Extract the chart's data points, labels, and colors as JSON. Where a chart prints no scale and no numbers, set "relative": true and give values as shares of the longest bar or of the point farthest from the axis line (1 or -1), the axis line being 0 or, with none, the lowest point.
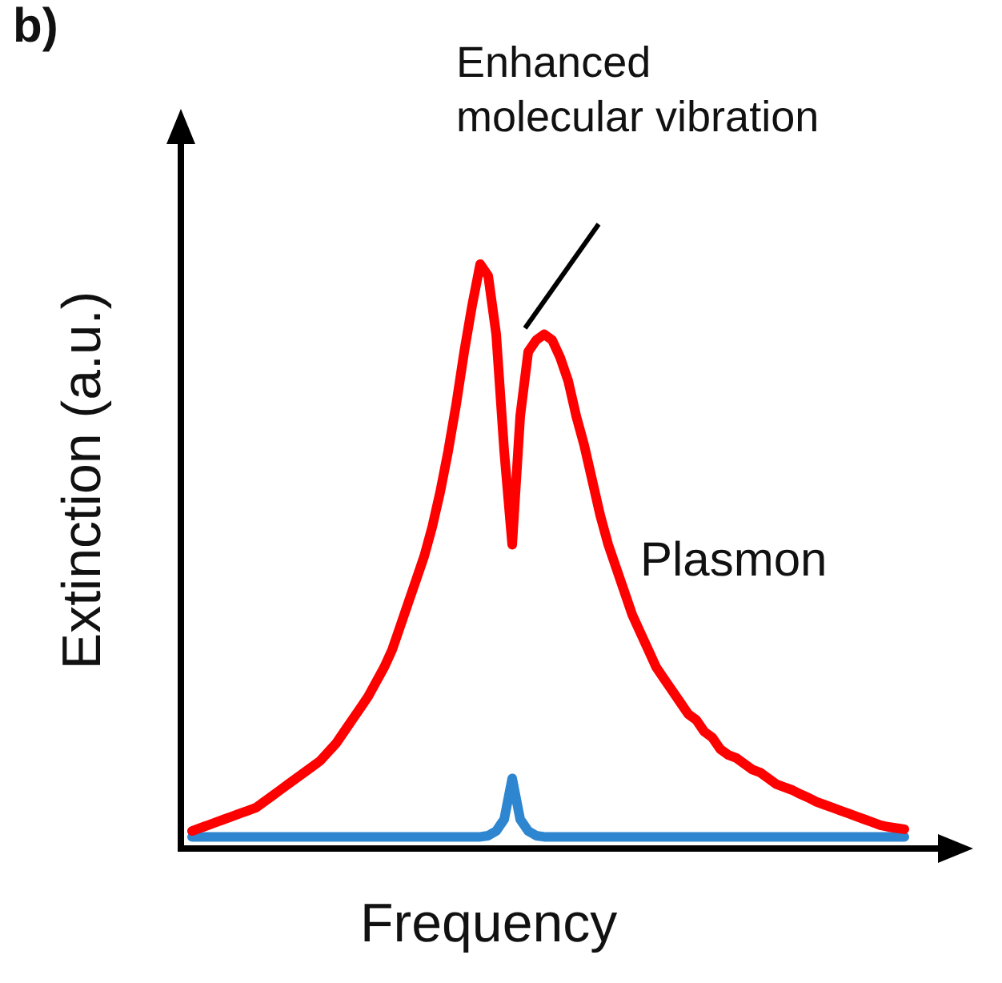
{
  "chart_data": {
    "type": "line",
    "relative": true,
    "xlabel": "Frequency",
    "ylabel": "Extinction (a.u.)",
    "legend": false,
    "grid": false,
    "marker": "none",
    "annotations": [
      "b)",
      "Enhanced\nmolecular vibration"
    ],
    "categories": [
      null,
      null,
      null,
      null,
      null,
      null,
      null,
      null,
      null,
      null,
      null,
      null,
      null,
      null,
      null,
      null,
      null,
      null,
      null,
      null,
      null,
      null,
      null,
      null,
      null,
      null,
      null,
      null,
      null,
      null,
      null,
      null,
      null,
      null,
      null,
      null,
      null,
      null,
      null,
      null,
      null,
      null,
      null,
      null,
      null,
      null,
      null,
      null,
      null,
      null,
      null,
      null,
      null,
      null,
      null,
      null,
      null,
      null,
      null,
      null,
      null,
      null,
      null,
      null,
      null,
      null,
      null,
      null,
      null,
      null,
      null,
      null,
      null,
      null,
      null,
      null,
      null,
      null,
      null,
      null,
      null,
      null,
      null,
      null,
      null,
      null,
      null,
      null,
      null,
      null
    ],
    "series": [
      {
        "name": "Plasmon",
        "color": "#ff0000",
        "values": [
          0.03,
          0.035,
          0.04,
          0.045,
          0.05,
          0.055,
          0.06,
          0.065,
          0.07,
          0.08,
          0.09,
          0.1,
          0.11,
          0.12,
          0.13,
          0.14,
          0.15,
          0.165,
          0.18,
          0.2,
          0.22,
          0.24,
          0.26,
          0.285,
          0.31,
          0.34,
          0.38,
          0.42,
          0.46,
          0.5,
          0.55,
          0.61,
          0.68,
          0.76,
          0.85,
          0.93,
          1,
          0.98,
          0.88,
          0.68,
          0.52,
          0.74,
          0.85,
          0.87,
          0.88,
          0.87,
          0.84,
          0.8,
          0.74,
          0.69,
          0.63,
          0.57,
          0.52,
          0.48,
          0.44,
          0.4,
          0.37,
          0.34,
          0.31,
          0.29,
          0.27,
          0.25,
          0.23,
          0.22,
          0.2,
          0.19,
          0.17,
          0.16,
          0.155,
          0.145,
          0.135,
          0.13,
          0.12,
          0.11,
          0.105,
          0.1,
          0.093,
          0.087,
          0.08,
          0.075,
          0.07,
          0.065,
          0.06,
          0.055,
          0.05,
          0.045,
          0.04,
          0.037,
          0.035,
          0.033
        ]
      },
      {
        "color": "#2f86d0",
        "values": [
          0.02,
          0.02,
          0.02,
          0.02,
          0.02,
          0.02,
          0.02,
          0.02,
          0.02,
          0.02,
          0.02,
          0.02,
          0.02,
          0.02,
          0.02,
          0.02,
          0.02,
          0.02,
          0.02,
          0.02,
          0.02,
          0.02,
          0.02,
          0.02,
          0.02,
          0.02,
          0.02,
          0.02,
          0.02,
          0.02,
          0.02,
          0.02,
          0.02,
          0.02,
          0.02,
          0.02,
          0.02,
          0.022,
          0.03,
          0.05,
          0.12,
          0.05,
          0.03,
          0.022,
          0.02,
          0.02,
          0.02,
          0.02,
          0.02,
          0.02,
          0.02,
          0.02,
          0.02,
          0.02,
          0.02,
          0.02,
          0.02,
          0.02,
          0.02,
          0.02,
          0.02,
          0.02,
          0.02,
          0.02,
          0.02,
          0.02,
          0.02,
          0.02,
          0.02,
          0.02,
          0.02,
          0.02,
          0.02,
          0.02,
          0.02,
          0.02,
          0.02,
          0.02,
          0.02,
          0.02,
          0.02,
          0.02,
          0.02,
          0.02,
          0.02,
          0.02,
          0.02,
          0.02,
          0.02,
          0.02
        ]
      }
    ]
  }
}
